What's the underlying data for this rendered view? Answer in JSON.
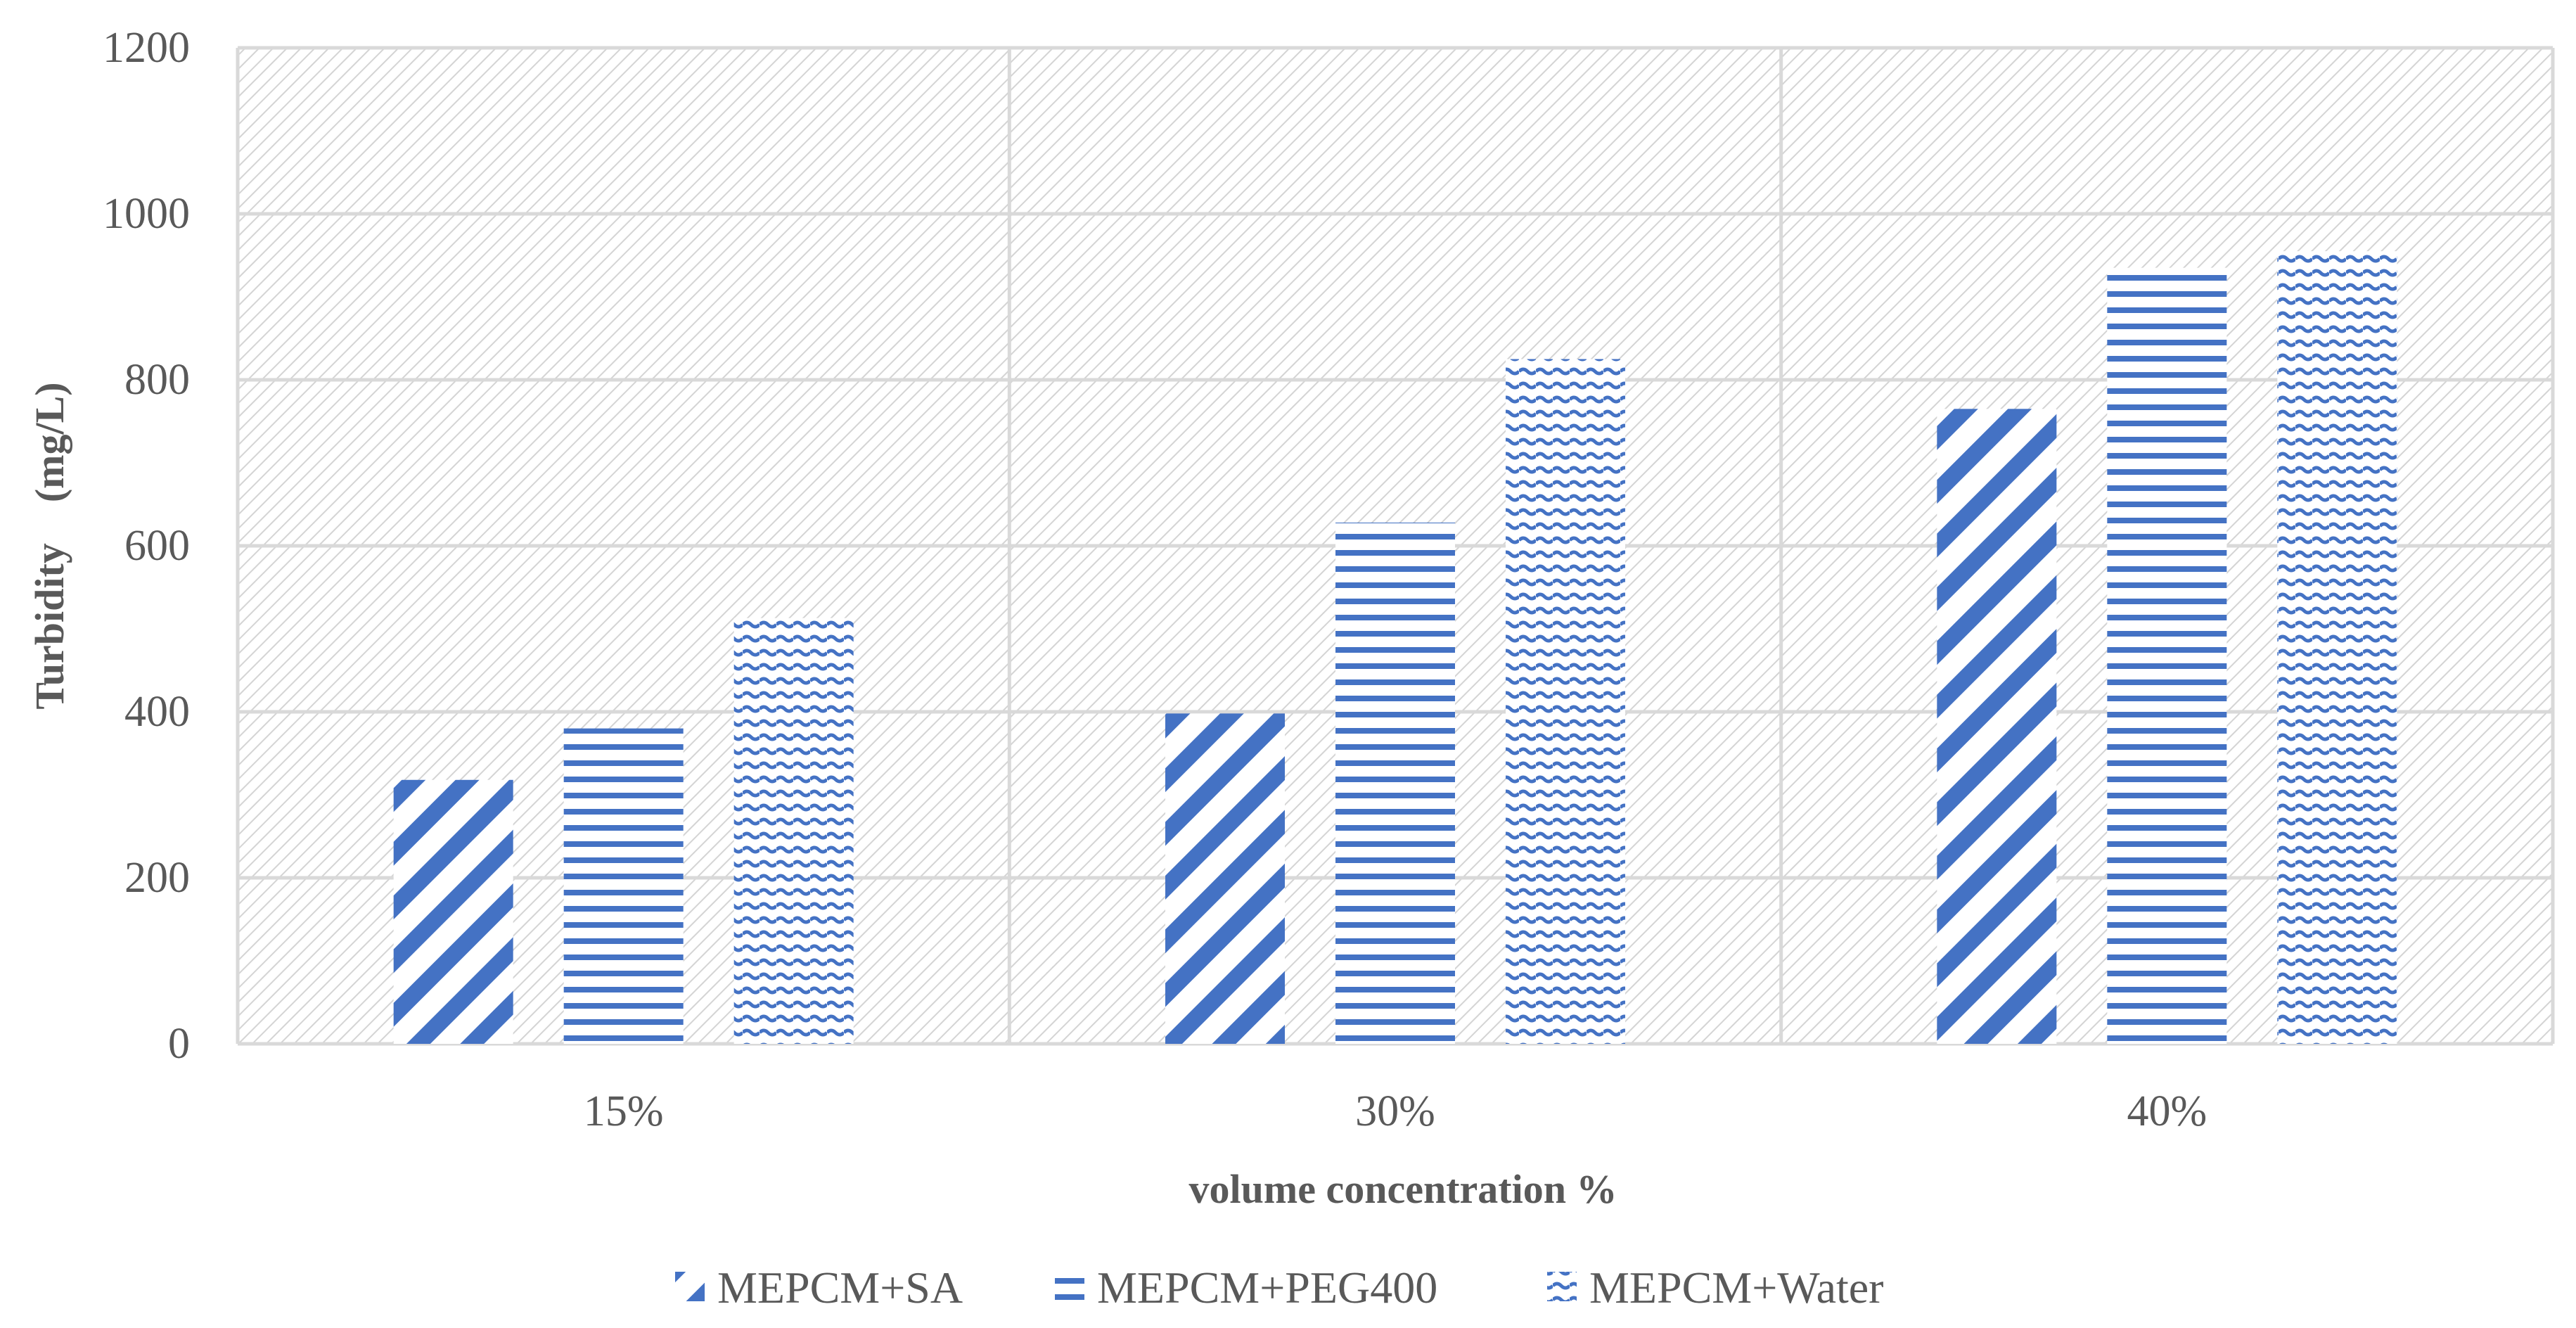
{
  "chart_data": {
    "type": "bar",
    "title": "",
    "xlabel": "volume concentration %",
    "ylabel": "Turbidity  (mg/L)",
    "categories": [
      "15%",
      "30%",
      "40%"
    ],
    "series": [
      {
        "name": "MEPCM+SA",
        "values": [
          318,
          398,
          765
        ],
        "color": "#4472c4",
        "pattern": "diagonal"
      },
      {
        "name": "MEPCM+PEG400",
        "values": [
          380,
          628,
          935
        ],
        "color": "#4472c4",
        "pattern": "horizontal"
      },
      {
        "name": "MEPCM+Water",
        "values": [
          513,
          825,
          955
        ],
        "color": "#4472c4",
        "pattern": "wave"
      }
    ],
    "ylim": [
      0,
      1200
    ],
    "yticks": [
      0,
      200,
      400,
      600,
      800,
      1000,
      1200
    ],
    "grid": true,
    "legend_position": "bottom"
  }
}
